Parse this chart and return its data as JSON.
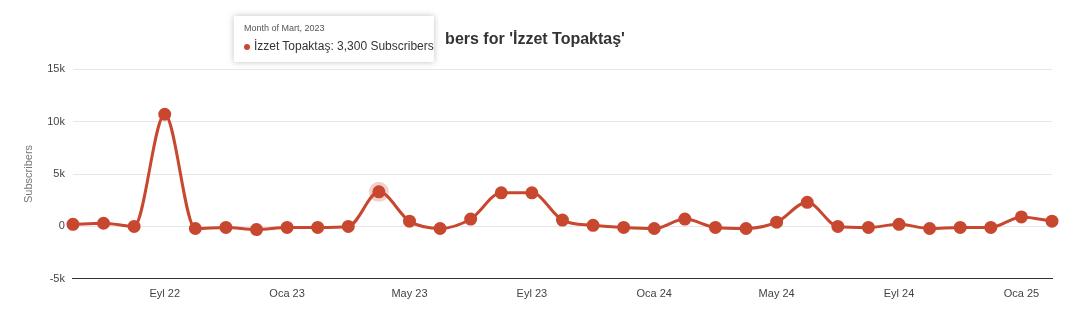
{
  "chart_data": {
    "type": "line",
    "title": "bers for 'İzzet Topaktaş'",
    "ylabel": "Subscribers",
    "categories": [
      null,
      null,
      null,
      "Eyl 22",
      null,
      null,
      null,
      "Oca 23",
      null,
      null,
      null,
      "May 23",
      null,
      null,
      null,
      "Eyl 23",
      null,
      null,
      null,
      "Oca 24",
      null,
      null,
      null,
      "May 24",
      null,
      null,
      null,
      "Eyl 24",
      null,
      null,
      null,
      "Oca 25",
      null
    ],
    "series": [
      {
        "color": "#c8472f",
        "values": [
          200,
          300,
          0,
          10700,
          -200,
          -100,
          -300,
          -100,
          -100,
          0,
          3300,
          500,
          -200,
          700,
          3200,
          3200,
          600,
          100,
          -100,
          -200,
          700,
          -100,
          -200,
          400,
          2300,
          0,
          -100,
          200,
          -200,
          -100,
          -100,
          900,
          500
        ]
      }
    ],
    "ylim": [
      -5000,
      15000
    ],
    "yticks": [
      {
        "value": -5000,
        "label": "-5k"
      },
      0,
      {
        "value": 5000,
        "label": "5k"
      },
      {
        "value": 10000,
        "label": "10k"
      },
      {
        "value": 15000,
        "label": "15k"
      }
    ],
    "annotations": [
      "Month of Mart, 2023",
      "İzzet Topaktaş: 3,300 Subscribers"
    ],
    "grid": "y",
    "legend": false,
    "marker": "circle",
    "line_style": "solid"
  }
}
